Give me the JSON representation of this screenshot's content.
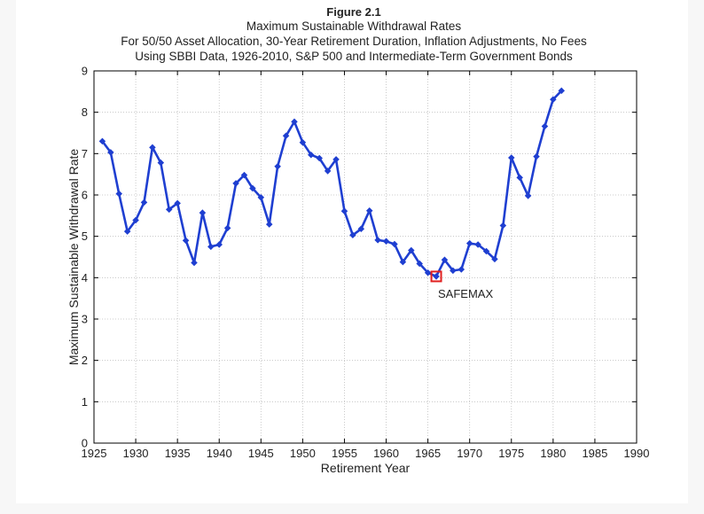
{
  "chart_data": {
    "type": "line",
    "figure_label": "Figure 2.1",
    "title_lines": [
      "Maximum Sustainable Withdrawal Rates",
      "For 50/50 Asset Allocation, 30-Year Retirement Duration, Inflation Adjustments, No Fees",
      "Using SBBI Data, 1926-2010, S&P 500 and Intermediate-Term Government Bonds"
    ],
    "xlabel": "Retirement Year",
    "ylabel": "Maximum Sustainable Withdrawal Rate",
    "xlim": [
      1925,
      1990
    ],
    "ylim": [
      0,
      9
    ],
    "x_ticks": [
      "1925",
      "1930",
      "1935",
      "1940",
      "1945",
      "1950",
      "1955",
      "1960",
      "1965",
      "1970",
      "1975",
      "1980",
      "1985",
      "1990"
    ],
    "y_ticks": [
      "0",
      "1",
      "2",
      "3",
      "4",
      "5",
      "6",
      "7",
      "8",
      "9"
    ],
    "grid": true,
    "series_color": "#1f3fd1",
    "highlight_color": "#e02020",
    "x": [
      1926,
      1927,
      1928,
      1929,
      1930,
      1931,
      1932,
      1933,
      1934,
      1935,
      1936,
      1937,
      1938,
      1939,
      1940,
      1941,
      1942,
      1943,
      1944,
      1945,
      1946,
      1947,
      1948,
      1949,
      1950,
      1951,
      1952,
      1953,
      1954,
      1955,
      1956,
      1957,
      1958,
      1959,
      1960,
      1961,
      1962,
      1963,
      1964,
      1965,
      1966,
      1967,
      1968,
      1969,
      1970,
      1971,
      1972,
      1973,
      1974,
      1975,
      1976,
      1977,
      1978,
      1979,
      1980,
      1981
    ],
    "y": [
      7.3,
      7.03,
      6.03,
      5.12,
      5.39,
      5.82,
      7.15,
      6.78,
      5.65,
      5.8,
      4.9,
      4.36,
      5.57,
      4.75,
      4.8,
      5.2,
      6.28,
      6.48,
      6.16,
      5.94,
      5.29,
      6.69,
      7.43,
      7.77,
      7.27,
      6.97,
      6.89,
      6.58,
      6.86,
      5.61,
      5.03,
      5.18,
      5.62,
      4.91,
      4.88,
      4.81,
      4.38,
      4.66,
      4.34,
      4.12,
      4.03,
      4.43,
      4.17,
      4.2,
      4.83,
      4.8,
      4.64,
      4.45,
      5.26,
      6.9,
      6.42,
      5.98,
      6.93,
      7.66,
      8.31,
      8.52
    ],
    "annotation": {
      "text": "SAFEMAX",
      "x": 1966,
      "y": 4.03
    }
  }
}
